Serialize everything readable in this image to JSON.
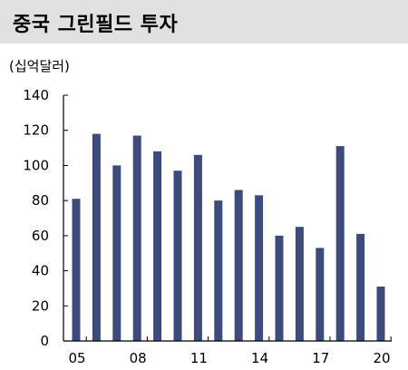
{
  "header": {
    "title": "중국 그린필드 투자"
  },
  "chart_data": {
    "type": "bar",
    "title": "중국 그린필드 투자",
    "ylabel": "(십억달러)",
    "xlabel": "",
    "categories": [
      "05",
      "06",
      "07",
      "08",
      "09",
      "10",
      "11",
      "12",
      "13",
      "14",
      "15",
      "16",
      "17",
      "18",
      "19",
      "20"
    ],
    "x_tick_labels": [
      "05",
      "08",
      "11",
      "14",
      "17",
      "20"
    ],
    "x_tick_categories": [
      "05",
      "08",
      "11",
      "14",
      "17",
      "20"
    ],
    "values": [
      81,
      118,
      100,
      117,
      108,
      97,
      106,
      80,
      86,
      83,
      60,
      65,
      53,
      111,
      61,
      31
    ],
    "ylim": [
      0,
      140
    ],
    "y_ticks": [
      0,
      20,
      40,
      60,
      80,
      100,
      120,
      140
    ],
    "y_tick_labels": [
      "0",
      "20",
      "40",
      "60",
      "80",
      "100",
      "120",
      "140"
    ],
    "grid": false,
    "legend": "none",
    "colors": {
      "bar": "#3d4a7c",
      "axis": "#000000",
      "header_bg": "#e1e1e1"
    }
  }
}
